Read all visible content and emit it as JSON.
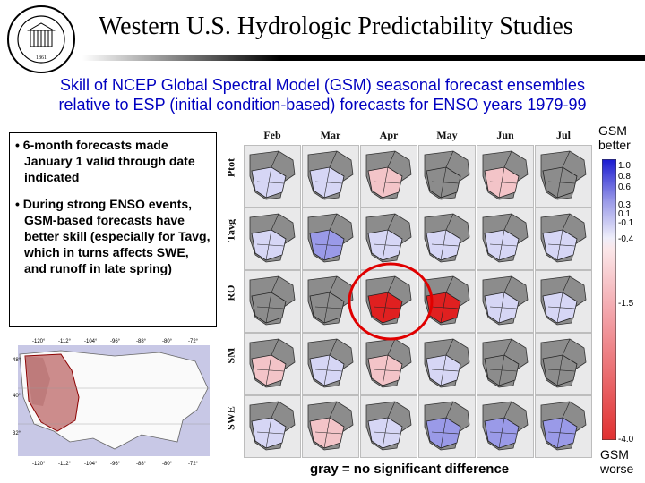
{
  "header": {
    "title": "Western U.S. Hydrologic Predictability Studies",
    "seal_text_top": "UNIVERSITY OF WASHINGTON",
    "seal_year": "1861"
  },
  "subtitle": {
    "line1": "Skill of NCEP Global Spectral Model (GSM) seasonal forecast ensembles",
    "line2": "relative to ESP (initial condition-based) forecasts for ENSO years 1979-99"
  },
  "bullets": [
    "• 6-month forecasts made January 1 valid through date indicated",
    "• During strong ENSO events, GSM-based forecasts have better skill (especially for Tavg, which in turns affects SWE, and runoff in late spring)"
  ],
  "map": {
    "lon_labels": [
      "-120°",
      "-112°",
      "-104°",
      "-96°",
      "-88°",
      "-80°",
      "-72°"
    ],
    "lat_labels": [
      "48°",
      "40°",
      "32°"
    ]
  },
  "grid": {
    "months": [
      "Feb",
      "Mar",
      "Apr",
      "May",
      "Jun",
      "Jul"
    ],
    "rows": [
      "Ptot",
      "Tavg",
      "RO",
      "SM",
      "SWE"
    ],
    "colors": {
      "gray": "#8c8c8c",
      "blue_light": "#d6d6f5",
      "blue_mid": "#9a9ae8",
      "blue_strong": "#5a5ad8",
      "red_light": "#f3c4c8",
      "red_mid": "#ea7f88",
      "red_strong": "#e02020",
      "highlight": "#e00000"
    },
    "shading": [
      [
        "blue_light",
        "blue_light",
        "red_light",
        "gray",
        "red_light",
        "gray"
      ],
      [
        "blue_light",
        "blue_mid",
        "blue_light",
        "blue_light",
        "blue_light",
        "blue_light"
      ],
      [
        "gray",
        "gray",
        "red_strong",
        "red_strong",
        "blue_light",
        "blue_light"
      ],
      [
        "red_light",
        "blue_light",
        "red_light",
        "blue_light",
        "gray",
        "gray"
      ],
      [
        "blue_light",
        "red_light",
        "blue_light",
        "blue_mid",
        "blue_mid",
        "blue_mid"
      ]
    ]
  },
  "legend": {
    "top_label_line1": "GSM",
    "top_label_line2": "better",
    "bottom_label_line1": "GSM",
    "bottom_label_line2": "worse",
    "ticks": [
      "1.0",
      "0.8",
      "0.6",
      "0.3",
      "0.1",
      "-0.1",
      "-0.4",
      "-1.5",
      "-4.0"
    ],
    "gray_note": "gray = no significant difference"
  }
}
